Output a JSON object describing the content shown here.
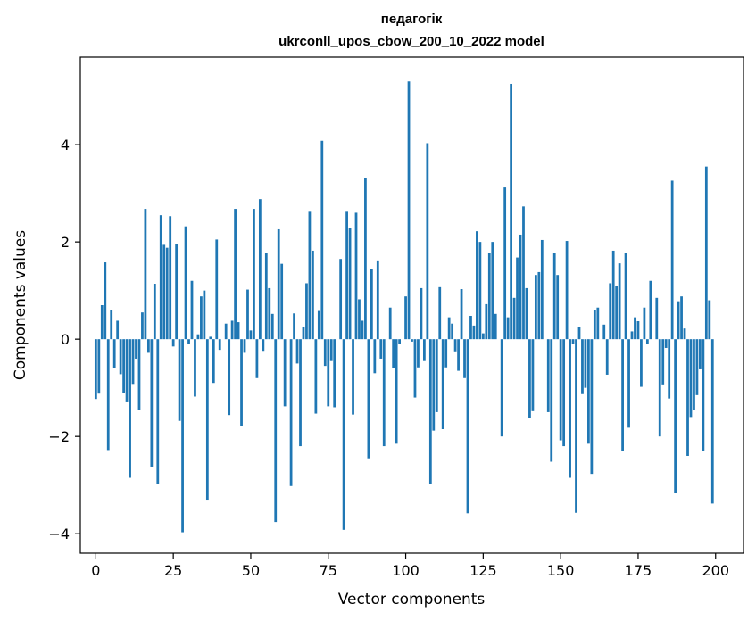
{
  "chart_data": {
    "type": "bar",
    "title": "педагогік",
    "subtitle": "ukrconll_upos_cbow_200_10_2022 model",
    "xlabel": "Vector components",
    "ylabel": "Components values",
    "xlim": [
      -5,
      209
    ],
    "ylim": [
      -4.4,
      5.8
    ],
    "xticks": [
      0,
      25,
      50,
      75,
      100,
      125,
      150,
      175,
      200
    ],
    "yticks": [
      -4,
      -2,
      0,
      2,
      4
    ],
    "ytick_labels": [
      "−4",
      "−2",
      "0",
      "2",
      "4"
    ],
    "bar_color": "#1f77b4",
    "grid": false,
    "x": [
      0,
      1,
      2,
      3,
      4,
      5,
      6,
      7,
      8,
      9,
      10,
      11,
      12,
      13,
      14,
      15,
      16,
      17,
      18,
      19,
      20,
      21,
      22,
      23,
      24,
      25,
      26,
      27,
      28,
      29,
      30,
      31,
      32,
      33,
      34,
      35,
      36,
      37,
      38,
      39,
      40,
      41,
      42,
      43,
      44,
      45,
      46,
      47,
      48,
      49,
      50,
      51,
      52,
      53,
      54,
      55,
      56,
      57,
      58,
      59,
      60,
      61,
      62,
      63,
      64,
      65,
      66,
      67,
      68,
      69,
      70,
      71,
      72,
      73,
      74,
      75,
      76,
      77,
      78,
      79,
      80,
      81,
      82,
      83,
      84,
      85,
      86,
      87,
      88,
      89,
      90,
      91,
      92,
      93,
      94,
      95,
      96,
      97,
      98,
      99,
      100,
      101,
      102,
      103,
      104,
      105,
      106,
      107,
      108,
      109,
      110,
      111,
      112,
      113,
      114,
      115,
      116,
      117,
      118,
      119,
      120,
      121,
      122,
      123,
      124,
      125,
      126,
      127,
      128,
      129,
      130,
      131,
      132,
      133,
      134,
      135,
      136,
      137,
      138,
      139,
      140,
      141,
      142,
      143,
      144,
      145,
      146,
      147,
      148,
      149,
      150,
      151,
      152,
      153,
      154,
      155,
      156,
      157,
      158,
      159,
      160,
      161,
      162,
      163,
      164,
      165,
      166,
      167,
      168,
      169,
      170,
      171,
      172,
      173,
      174,
      175,
      176,
      177,
      178,
      179,
      180,
      181,
      182,
      183,
      184,
      185,
      186,
      187,
      188,
      189,
      190,
      191,
      192,
      193,
      194,
      195,
      196,
      197,
      198,
      199
    ],
    "values": [
      -1.23,
      -1.12,
      0.7,
      1.58,
      -2.28,
      0.6,
      -0.6,
      0.38,
      -0.72,
      -1.1,
      -1.28,
      -2.85,
      -0.92,
      -0.4,
      -1.45,
      0.55,
      2.68,
      -0.28,
      -2.62,
      1.14,
      -2.98,
      2.55,
      1.94,
      1.88,
      2.53,
      -0.15,
      1.95,
      -1.68,
      -3.97,
      2.32,
      -0.1,
      1.2,
      -1.18,
      0.1,
      0.88,
      1.0,
      -3.3,
      0.05,
      -0.9,
      2.05,
      -0.22,
      0.0,
      0.32,
      -1.56,
      0.38,
      2.68,
      0.35,
      -1.78,
      -0.28,
      1.02,
      0.18,
      2.68,
      -0.8,
      2.88,
      -0.24,
      1.78,
      1.05,
      0.52,
      -3.76,
      2.26,
      1.55,
      -1.38,
      0.0,
      -3.02,
      0.53,
      -0.5,
      -2.2,
      0.26,
      1.15,
      2.62,
      1.82,
      -1.53,
      0.58,
      4.08,
      -0.55,
      -1.38,
      -0.45,
      -1.4,
      0.0,
      1.65,
      -3.92,
      2.62,
      2.28,
      -1.55,
      2.6,
      0.82,
      0.38,
      3.32,
      -2.45,
      1.45,
      -0.7,
      1.62,
      -0.4,
      -2.2,
      0.0,
      0.65,
      -0.6,
      -2.15,
      -0.1,
      0.0,
      0.88,
      5.3,
      -0.05,
      -1.2,
      -0.58,
      1.05,
      -0.45,
      4.03,
      -2.97,
      -1.88,
      -1.5,
      1.07,
      -1.85,
      -0.58,
      0.45,
      0.32,
      -0.25,
      -0.65,
      1.03,
      -0.8,
      -3.58,
      0.48,
      0.28,
      2.22,
      2.0,
      0.12,
      0.72,
      1.78,
      2.0,
      0.52,
      0.0,
      -2.0,
      3.12,
      0.45,
      5.25,
      0.85,
      1.68,
      2.15,
      2.73,
      1.05,
      -1.62,
      -1.48,
      1.32,
      1.38,
      2.04,
      0.0,
      -1.5,
      -2.52,
      1.78,
      1.32,
      -2.08,
      -2.2,
      2.02,
      -2.85,
      -0.1,
      -3.57,
      0.25,
      -1.13,
      -1.0,
      -2.15,
      -2.77,
      0.6,
      0.65,
      0.0,
      0.3,
      -0.73,
      1.15,
      1.82,
      1.1,
      1.56,
      -2.3,
      1.78,
      -1.82,
      0.16,
      0.45,
      0.37,
      -0.98,
      0.65,
      -0.1,
      1.2,
      0.0,
      0.85,
      -2.0,
      -0.93,
      -0.18,
      -1.22,
      3.26,
      -3.17,
      0.78,
      0.88,
      0.22,
      -2.4,
      -1.6,
      -1.45,
      -1.15,
      -0.62,
      -2.3,
      3.55,
      0.8,
      -3.38
    ]
  }
}
